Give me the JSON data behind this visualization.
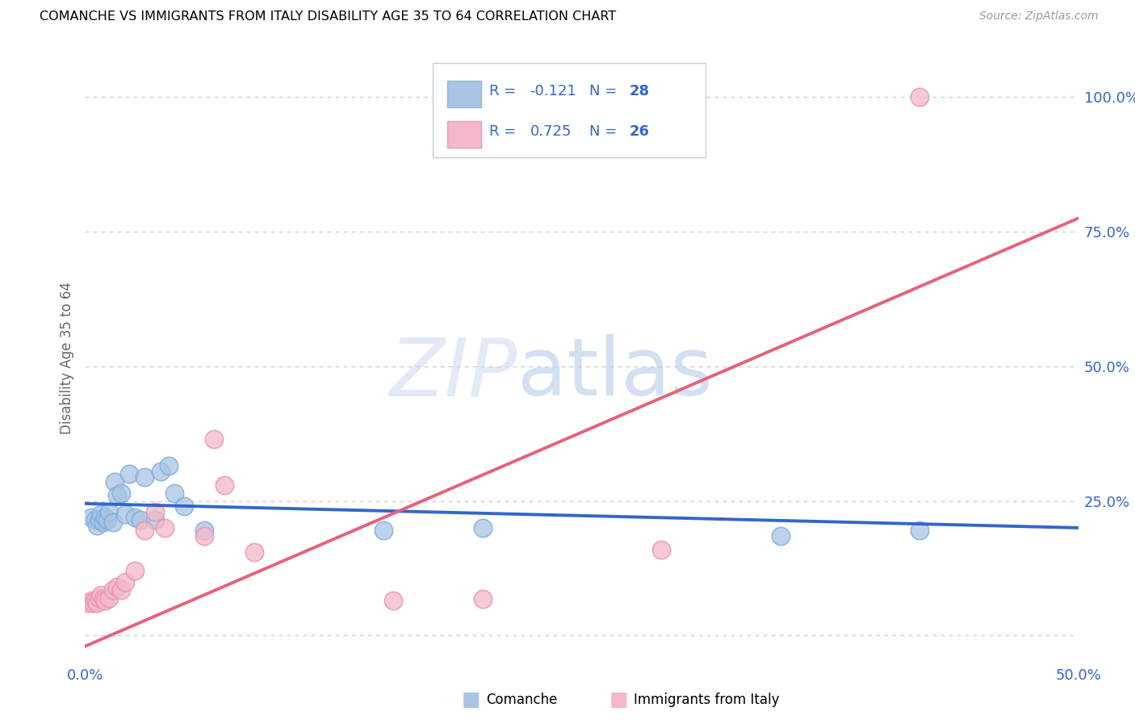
{
  "title": "COMANCHE VS IMMIGRANTS FROM ITALY DISABILITY AGE 35 TO 64 CORRELATION CHART",
  "source": "Source: ZipAtlas.com",
  "ylabel": "Disability Age 35 to 64",
  "xlim": [
    0.0,
    0.5
  ],
  "ylim": [
    -0.05,
    1.08
  ],
  "yticks": [
    0.0,
    0.25,
    0.5,
    0.75,
    1.0
  ],
  "ytick_labels": [
    "",
    "25.0%",
    "50.0%",
    "75.0%",
    "100.0%"
  ],
  "xticks": [
    0.0,
    0.1,
    0.2,
    0.3,
    0.4,
    0.5
  ],
  "xtick_labels": [
    "0.0%",
    "",
    "",
    "",
    "",
    "50.0%"
  ],
  "comanche_color": "#a8c4e5",
  "italy_color": "#f4b8c8",
  "comanche_line_color": "#3366cc",
  "italy_line_color": "#e8607a",
  "legend_text_color": "#3366cc",
  "comanche_x": [
    0.003,
    0.005,
    0.006,
    0.007,
    0.008,
    0.009,
    0.01,
    0.011,
    0.012,
    0.014,
    0.015,
    0.016,
    0.018,
    0.02,
    0.022,
    0.025,
    0.028,
    0.03,
    0.035,
    0.038,
    0.042,
    0.045,
    0.05,
    0.06,
    0.15,
    0.2,
    0.35,
    0.42
  ],
  "comanche_y": [
    0.22,
    0.215,
    0.205,
    0.215,
    0.225,
    0.21,
    0.22,
    0.215,
    0.23,
    0.21,
    0.285,
    0.26,
    0.265,
    0.225,
    0.3,
    0.22,
    0.215,
    0.295,
    0.215,
    0.305,
    0.315,
    0.265,
    0.24,
    0.195,
    0.195,
    0.2,
    0.185,
    0.195
  ],
  "italy_x": [
    0.002,
    0.003,
    0.004,
    0.005,
    0.006,
    0.007,
    0.008,
    0.009,
    0.01,
    0.012,
    0.014,
    0.016,
    0.018,
    0.02,
    0.025,
    0.03,
    0.035,
    0.04,
    0.06,
    0.065,
    0.07,
    0.085,
    0.155,
    0.2,
    0.29,
    0.42
  ],
  "italy_y": [
    0.06,
    0.065,
    0.06,
    0.065,
    0.06,
    0.07,
    0.075,
    0.068,
    0.065,
    0.07,
    0.085,
    0.09,
    0.085,
    0.1,
    0.12,
    0.195,
    0.23,
    0.2,
    0.185,
    0.365,
    0.28,
    0.155,
    0.065,
    0.068,
    0.16,
    1.0
  ],
  "comanche_trend_x": [
    0.0,
    0.5
  ],
  "comanche_trend_y": [
    0.245,
    0.2
  ],
  "italy_trend_x": [
    0.0,
    0.5
  ],
  "italy_trend_y": [
    -0.02,
    0.775
  ],
  "watermark_zip": "ZIP",
  "watermark_atlas": "atlas"
}
